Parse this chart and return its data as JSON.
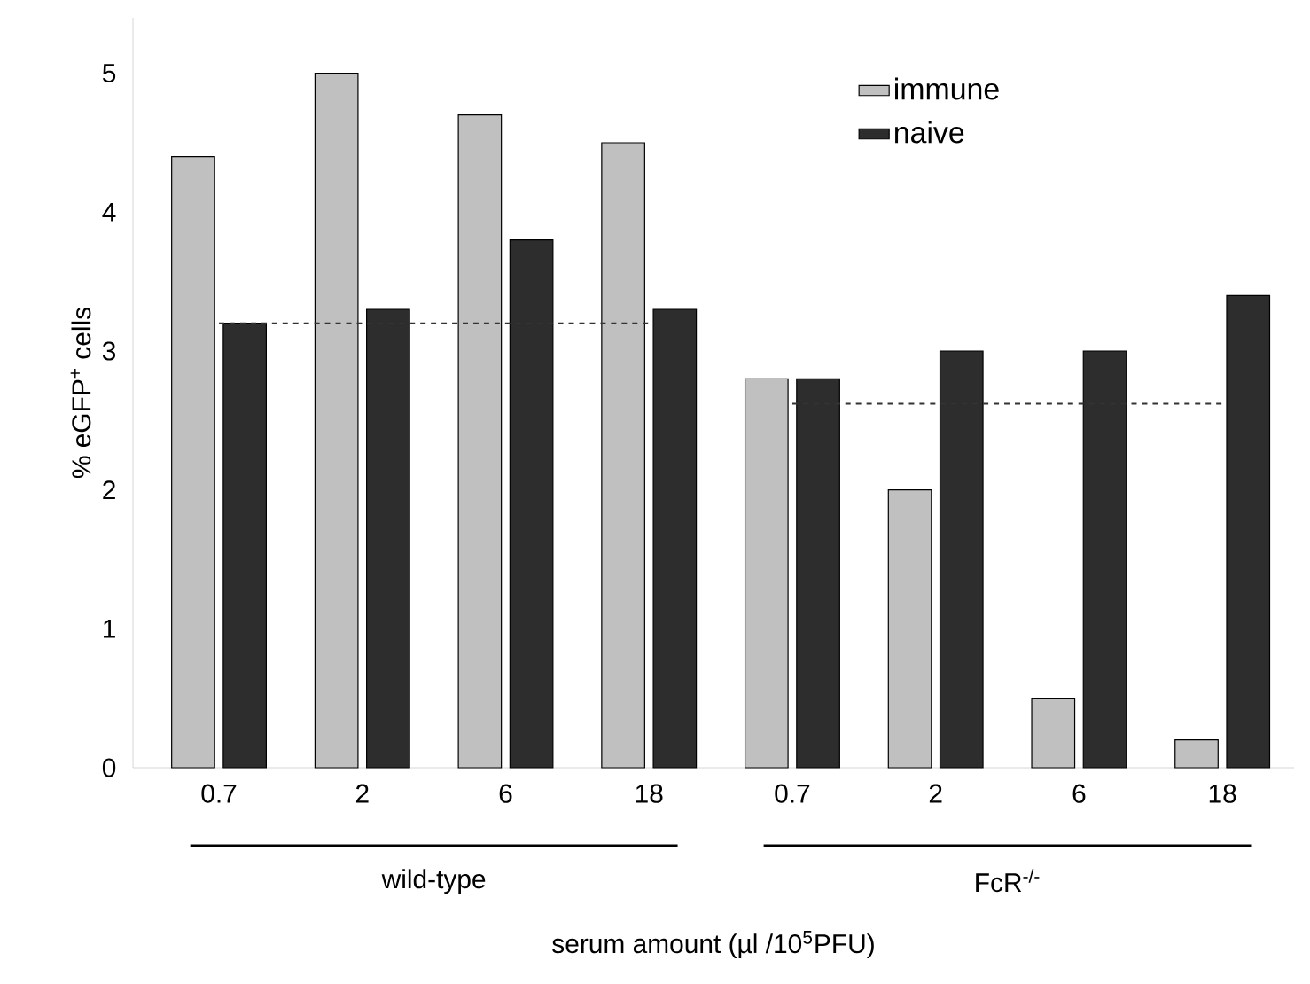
{
  "chart_data": {
    "type": "bar",
    "xlabel": "serum amount (µl /10$^{5}$PFU)",
    "ylabel": "% eGFP$^{+}$ cells",
    "categories": [
      "0.7",
      "2",
      "6",
      "18",
      "0.7",
      "2",
      "6",
      "18"
    ],
    "series": [
      {
        "name": "immune",
        "color": "#c0c0c0",
        "values": [
          4.4,
          5.0,
          4.7,
          4.5,
          2.8,
          2.0,
          0.5,
          0.2
        ]
      },
      {
        "name": "naive",
        "color": "#2d2d2d",
        "values": [
          3.2,
          3.3,
          3.8,
          3.3,
          2.8,
          3.0,
          3.0,
          3.4
        ]
      },
      {
        "type": "line",
        "line_style": "dashed",
        "color": "#333333",
        "values": [
          3.2,
          3.2,
          3.2,
          3.2,
          null,
          null,
          null,
          null
        ]
      },
      {
        "type": "line",
        "line_style": "dashed",
        "color": "#333333",
        "values": [
          null,
          null,
          null,
          null,
          2.62,
          2.62,
          2.62,
          2.62
        ]
      }
    ],
    "annotations": [
      "wild-type",
      "FcR$^{-/-}$"
    ],
    "ylim": [
      0,
      5.4
    ],
    "yticks": [
      0,
      1,
      2,
      3,
      4,
      5
    ],
    "legend": "top right",
    "grid": false
  }
}
